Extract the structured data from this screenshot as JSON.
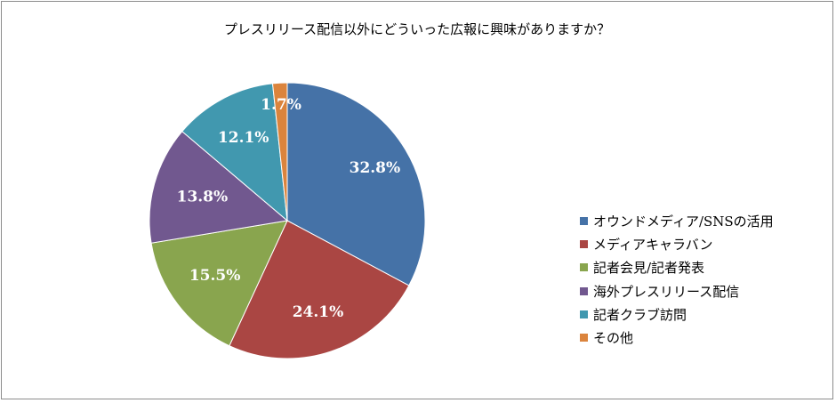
{
  "chart_data": {
    "type": "pie",
    "title": "プレスリリース配信以外にどういった広報に興味がありますか？",
    "categories": [
      "オウンドメディア/SNSの活用",
      "メディアキャラバン",
      "記者会見/記者発表",
      "海外プレスリリース配信",
      "記者クラブ訪問",
      "その他"
    ],
    "values": [
      32.8,
      24.1,
      15.5,
      13.8,
      12.1,
      1.7
    ],
    "data_labels": [
      "32.8%",
      "24.1%",
      "15.5%",
      "13.8%",
      "12.1%",
      "1.7%"
    ],
    "colors": [
      "#4572a7",
      "#aa4643",
      "#89a54e",
      "#71588f",
      "#4198af",
      "#db843d"
    ],
    "legend_position": "right",
    "start_angle": "top",
    "direction": "clockwise"
  }
}
